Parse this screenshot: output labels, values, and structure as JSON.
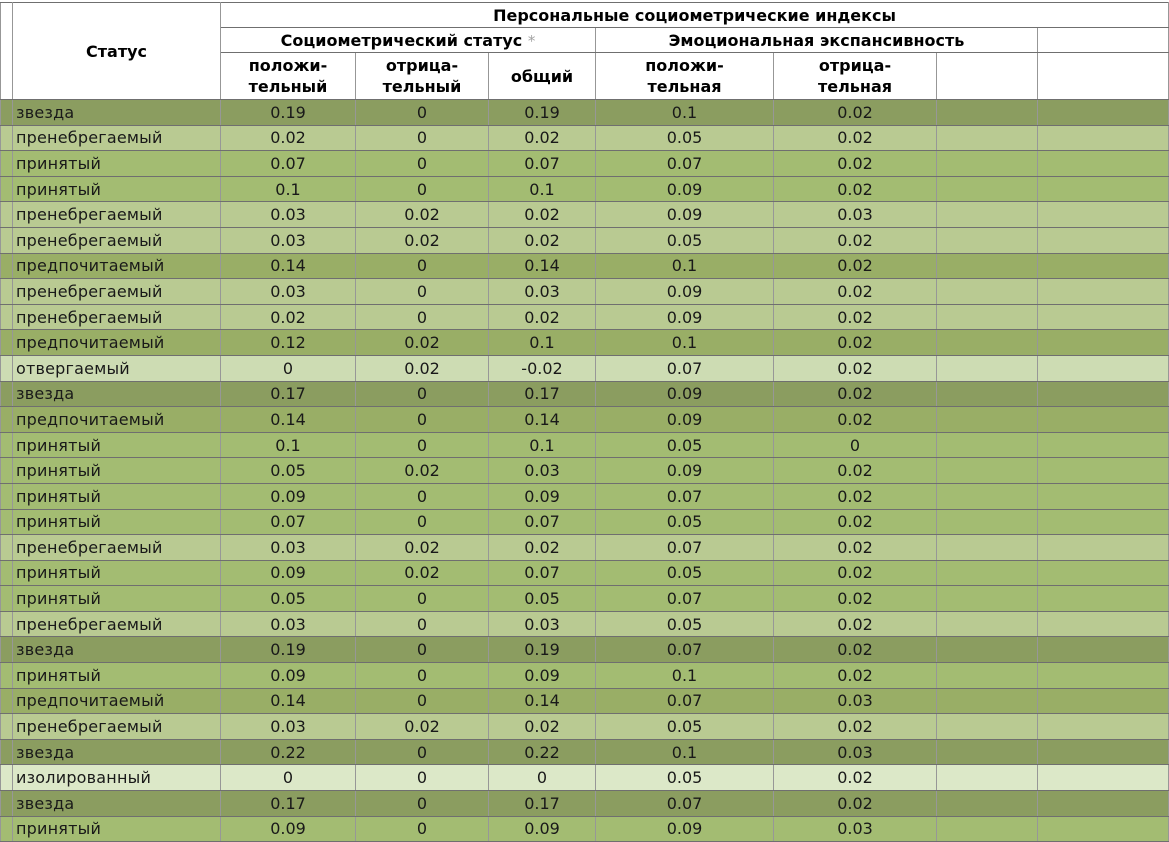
{
  "table": {
    "header": {
      "group_title": "Персональные социометрические индексы",
      "corner": "Статус",
      "subgroups": [
        {
          "label": "Социометрический статус",
          "note": "*"
        },
        {
          "label": "Эмоциональная экспансивность",
          "note": ""
        }
      ],
      "columns": [
        {
          "line1": "положи-",
          "line2": "тельный"
        },
        {
          "line1": "отрица-",
          "line2": "тельный"
        },
        {
          "line1": "общий",
          "line2": ""
        },
        {
          "line1": "положи-",
          "line2": "тельная"
        },
        {
          "line1": "отрица-",
          "line2": "тельная"
        }
      ]
    },
    "status_colors": {
      "star": "#8b9d60",
      "neglected": "#b9ca92",
      "accepted": "#a3bc72",
      "preferred": "#99ae66",
      "rejected": "#cddcb3",
      "isolated": "#dce8c8"
    },
    "rows": [
      {
        "status": "звезда",
        "type": "star",
        "values": [
          "0.19",
          "0",
          "0.19",
          "0.1",
          "0.02"
        ]
      },
      {
        "status": "пренебрегаемый",
        "type": "neglected",
        "values": [
          "0.02",
          "0",
          "0.02",
          "0.05",
          "0.02"
        ]
      },
      {
        "status": "принятый",
        "type": "accepted",
        "values": [
          "0.07",
          "0",
          "0.07",
          "0.07",
          "0.02"
        ]
      },
      {
        "status": "принятый",
        "type": "accepted",
        "values": [
          "0.1",
          "0",
          "0.1",
          "0.09",
          "0.02"
        ]
      },
      {
        "status": "пренебрегаемый",
        "type": "neglected",
        "values": [
          "0.03",
          "0.02",
          "0.02",
          "0.09",
          "0.03"
        ]
      },
      {
        "status": "пренебрегаемый",
        "type": "neglected",
        "values": [
          "0.03",
          "0.02",
          "0.02",
          "0.05",
          "0.02"
        ]
      },
      {
        "status": "предпочитаемый",
        "type": "preferred",
        "values": [
          "0.14",
          "0",
          "0.14",
          "0.1",
          "0.02"
        ]
      },
      {
        "status": "пренебрегаемый",
        "type": "neglected",
        "values": [
          "0.03",
          "0",
          "0.03",
          "0.09",
          "0.02"
        ]
      },
      {
        "status": "пренебрегаемый",
        "type": "neglected",
        "values": [
          "0.02",
          "0",
          "0.02",
          "0.09",
          "0.02"
        ]
      },
      {
        "status": "предпочитаемый",
        "type": "preferred",
        "values": [
          "0.12",
          "0.02",
          "0.1",
          "0.1",
          "0.02"
        ]
      },
      {
        "status": "отвергаемый",
        "type": "rejected",
        "values": [
          "0",
          "0.02",
          "-0.02",
          "0.07",
          "0.02"
        ]
      },
      {
        "status": "звезда",
        "type": "star",
        "values": [
          "0.17",
          "0",
          "0.17",
          "0.09",
          "0.02"
        ]
      },
      {
        "status": "предпочитаемый",
        "type": "preferred",
        "values": [
          "0.14",
          "0",
          "0.14",
          "0.09",
          "0.02"
        ]
      },
      {
        "status": "принятый",
        "type": "accepted",
        "values": [
          "0.1",
          "0",
          "0.1",
          "0.05",
          "0"
        ]
      },
      {
        "status": "принятый",
        "type": "accepted",
        "values": [
          "0.05",
          "0.02",
          "0.03",
          "0.09",
          "0.02"
        ]
      },
      {
        "status": "принятый",
        "type": "accepted",
        "values": [
          "0.09",
          "0",
          "0.09",
          "0.07",
          "0.02"
        ]
      },
      {
        "status": "принятый",
        "type": "accepted",
        "values": [
          "0.07",
          "0",
          "0.07",
          "0.05",
          "0.02"
        ]
      },
      {
        "status": "пренебрегаемый",
        "type": "neglected",
        "values": [
          "0.03",
          "0.02",
          "0.02",
          "0.07",
          "0.02"
        ]
      },
      {
        "status": "принятый",
        "type": "accepted",
        "values": [
          "0.09",
          "0.02",
          "0.07",
          "0.05",
          "0.02"
        ]
      },
      {
        "status": "принятый",
        "type": "accepted",
        "values": [
          "0.05",
          "0",
          "0.05",
          "0.07",
          "0.02"
        ]
      },
      {
        "status": "пренебрегаемый",
        "type": "neglected",
        "values": [
          "0.03",
          "0",
          "0.03",
          "0.05",
          "0.02"
        ]
      },
      {
        "status": "звезда",
        "type": "star",
        "values": [
          "0.19",
          "0",
          "0.19",
          "0.07",
          "0.02"
        ]
      },
      {
        "status": "принятый",
        "type": "accepted",
        "values": [
          "0.09",
          "0",
          "0.09",
          "0.1",
          "0.02"
        ]
      },
      {
        "status": "предпочитаемый",
        "type": "preferred",
        "values": [
          "0.14",
          "0",
          "0.14",
          "0.07",
          "0.03"
        ]
      },
      {
        "status": "пренебрегаемый",
        "type": "neglected",
        "values": [
          "0.03",
          "0.02",
          "0.02",
          "0.05",
          "0.02"
        ]
      },
      {
        "status": "звезда",
        "type": "star",
        "values": [
          "0.22",
          "0",
          "0.22",
          "0.1",
          "0.03"
        ]
      },
      {
        "status": "изолированный",
        "type": "isolated",
        "values": [
          "0",
          "0",
          "0",
          "0.05",
          "0.02"
        ]
      },
      {
        "status": "звезда",
        "type": "star",
        "values": [
          "0.17",
          "0",
          "0.17",
          "0.07",
          "0.02"
        ]
      },
      {
        "status": "принятый",
        "type": "accepted",
        "values": [
          "0.09",
          "0",
          "0.09",
          "0.09",
          "0.03"
        ]
      }
    ]
  }
}
